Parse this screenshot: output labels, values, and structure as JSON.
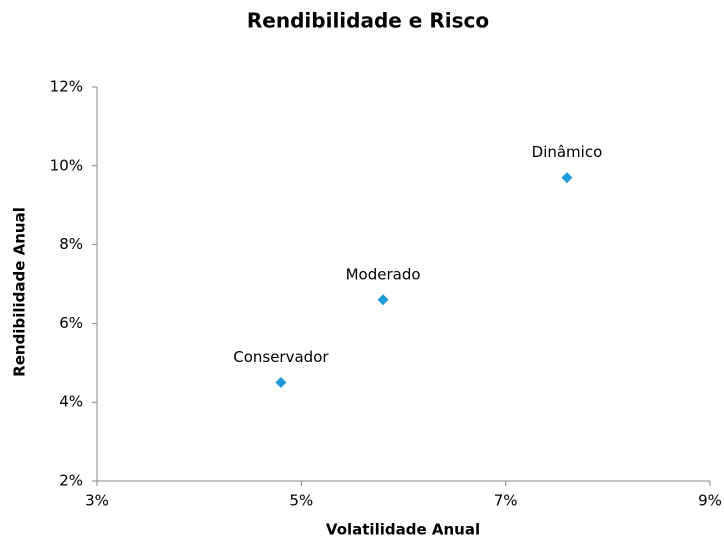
{
  "chart_data": {
    "type": "scatter",
    "title": "Rendibilidade e Risco",
    "x_label": "Volatilidade Anual",
    "y_label": "Rendibilidade Anual",
    "point_labels": [
      "Conservador",
      "Moderado",
      "Dinâmico"
    ],
    "x": [
      4.8,
      5.8,
      7.6
    ],
    "y": [
      4.5,
      6.6,
      9.7
    ],
    "color": "#1e9bd7",
    "xlim": [
      3,
      9
    ],
    "xticks": [
      {
        "value": 3,
        "label": "3%"
      },
      {
        "value": 5,
        "label": "5%"
      },
      {
        "value": 7,
        "label": "7%"
      },
      {
        "value": 9,
        "label": "9%"
      }
    ],
    "ylim": [
      2,
      12
    ],
    "yticks": [
      {
        "value": 2,
        "label": "2%"
      },
      {
        "value": 4,
        "label": "4%"
      },
      {
        "value": 6,
        "label": "6%"
      },
      {
        "value": 8,
        "label": "8%"
      },
      {
        "value": 10,
        "label": "10%"
      },
      {
        "value": 12,
        "label": "12%"
      }
    ],
    "grid": false
  }
}
